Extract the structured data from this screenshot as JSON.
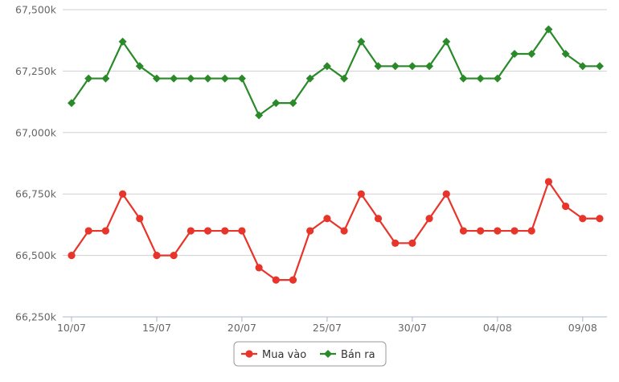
{
  "chart_data": {
    "type": "line",
    "x": [
      "10/07",
      "11/07",
      "12/07",
      "13/07",
      "14/07",
      "15/07",
      "16/07",
      "17/07",
      "18/07",
      "19/07",
      "20/07",
      "21/07",
      "22/07",
      "23/07",
      "24/07",
      "25/07",
      "26/07",
      "27/07",
      "28/07",
      "29/07",
      "30/07",
      "31/07",
      "01/08",
      "02/08",
      "03/08",
      "04/08",
      "05/08",
      "06/08",
      "07/08",
      "08/08",
      "09/08",
      "10/08"
    ],
    "x_tick_labels": [
      "10/07",
      "15/07",
      "20/07",
      "25/07",
      "30/07",
      "04/08",
      "09/08"
    ],
    "x_tick_indices": [
      0,
      5,
      10,
      15,
      20,
      25,
      30
    ],
    "ylim": [
      66250,
      67500
    ],
    "y_ticks": [
      66250,
      66500,
      66750,
      67000,
      67250,
      67500
    ],
    "y_tick_labels": [
      "66,250k",
      "66,500k",
      "66,750k",
      "67,000k",
      "67,250k",
      "67,500k"
    ],
    "grid": true,
    "legend_position": "bottom-center",
    "series": [
      {
        "name": "Mua vào",
        "color": "#e8352b",
        "marker": "circle",
        "values": [
          66500,
          66600,
          66600,
          66750,
          66650,
          66500,
          66500,
          66600,
          66600,
          66600,
          66600,
          66450,
          66400,
          66400,
          66600,
          66650,
          66600,
          66750,
          66650,
          66550,
          66550,
          66650,
          66750,
          66600,
          66600,
          66600,
          66600,
          66600,
          66800,
          66700,
          66650,
          66650
        ]
      },
      {
        "name": "Bán ra",
        "color": "#2a8a2a",
        "marker": "diamond",
        "values": [
          67120,
          67220,
          67220,
          67370,
          67270,
          67220,
          67220,
          67220,
          67220,
          67220,
          67220,
          67070,
          67120,
          67120,
          67220,
          67270,
          67220,
          67370,
          67270,
          67270,
          67270,
          67270,
          67370,
          67220,
          67220,
          67220,
          67320,
          67320,
          67420,
          67320,
          67270,
          67270
        ]
      }
    ]
  }
}
